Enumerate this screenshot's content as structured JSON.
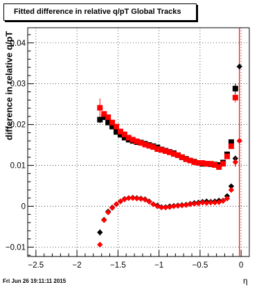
{
  "chart_data": {
    "type": "scatter",
    "title": "Fitted difference in relative q/pT  Global Tracks",
    "xlabel": "η",
    "ylabel": "difference in relative q/pT",
    "xlim": [
      -2.6,
      0.1
    ],
    "ylim": [
      -0.0123,
      0.0437
    ],
    "x_ticks": [
      -2.5,
      -2,
      -1.5,
      -1,
      -0.5,
      0
    ],
    "x_tick_labels": [
      "−2.5",
      "−2",
      "−1.5",
      "−1",
      "−0.5",
      "0"
    ],
    "y_ticks": [
      -0.01,
      0,
      0.01,
      0.02,
      0.03,
      0.04
    ],
    "y_tick_labels": [
      "−0.01",
      "0",
      "0.01",
      "0.02",
      "0.03",
      "0.04"
    ],
    "grid": true,
    "vertical_line": {
      "x": -0.02,
      "color": "#ff0000"
    },
    "series": [
      {
        "marker": "square",
        "color": "#000000",
        "x": [
          -1.72,
          -1.67,
          -1.62,
          -1.57,
          -1.52,
          -1.47,
          -1.42,
          -1.37,
          -1.32,
          -1.27,
          -1.22,
          -1.17,
          -1.12,
          -1.07,
          -1.02,
          -0.97,
          -0.92,
          -0.87,
          -0.82,
          -0.77,
          -0.72,
          -0.67,
          -0.62,
          -0.57,
          -0.52,
          -0.47,
          -0.42,
          -0.37,
          -0.32,
          -0.27,
          -0.22,
          -0.17,
          -0.12,
          -0.07
        ],
        "y": [
          0.0212,
          0.0218,
          0.0205,
          0.0195,
          0.0182,
          0.0175,
          0.0168,
          0.0163,
          0.016,
          0.0157,
          0.0156,
          0.0153,
          0.015,
          0.0147,
          0.0144,
          0.0139,
          0.0136,
          0.0133,
          0.013,
          0.0125,
          0.012,
          0.0116,
          0.0112,
          0.0109,
          0.0106,
          0.0104,
          0.0104,
          0.0103,
          0.0102,
          0.0101,
          0.0107,
          0.0127,
          0.0157,
          0.0288
        ],
        "err": [
          0.0008,
          0.0005,
          0.0005,
          0,
          0,
          0,
          0,
          0,
          0,
          0,
          0,
          0,
          0,
          0,
          0,
          0,
          0,
          0,
          0,
          0,
          0,
          0,
          0,
          0,
          0,
          0,
          0,
          0,
          0,
          0,
          0,
          0,
          0,
          0.0012
        ]
      },
      {
        "marker": "square",
        "color": "#ff0000",
        "x": [
          -1.72,
          -1.67,
          -1.62,
          -1.57,
          -1.52,
          -1.47,
          -1.42,
          -1.37,
          -1.32,
          -1.27,
          -1.22,
          -1.17,
          -1.12,
          -1.07,
          -1.02,
          -0.97,
          -0.92,
          -0.87,
          -0.82,
          -0.77,
          -0.72,
          -0.67,
          -0.62,
          -0.57,
          -0.52,
          -0.47,
          -0.42,
          -0.37,
          -0.32,
          -0.27,
          -0.22,
          -0.17,
          -0.12,
          -0.07
        ],
        "y": [
          0.0241,
          0.0226,
          0.0218,
          0.0205,
          0.0195,
          0.0183,
          0.0176,
          0.0168,
          0.0163,
          0.0159,
          0.0155,
          0.0151,
          0.0148,
          0.0145,
          0.014,
          0.0138,
          0.0135,
          0.0132,
          0.0128,
          0.0125,
          0.012,
          0.0115,
          0.0112,
          0.0108,
          0.0106,
          0.0106,
          0.0104,
          0.0104,
          0.0101,
          0.0096,
          0.0104,
          0.0122,
          0.0147,
          0.0266
        ],
        "err": [
          0.0023,
          0.0006,
          0.0005,
          0,
          0,
          0,
          0,
          0,
          0,
          0,
          0,
          0,
          0,
          0,
          0,
          0,
          0,
          0,
          0,
          0,
          0,
          0,
          0,
          0,
          0,
          0,
          0,
          0,
          0,
          0,
          0,
          0,
          0,
          0.0012
        ]
      },
      {
        "marker": "diamond",
        "color": "#000000",
        "x": [
          -1.72,
          -1.67,
          -1.62,
          -1.57,
          -1.52,
          -1.47,
          -1.42,
          -1.37,
          -1.32,
          -1.27,
          -1.22,
          -1.17,
          -1.12,
          -1.07,
          -1.02,
          -0.97,
          -0.92,
          -0.87,
          -0.82,
          -0.77,
          -0.72,
          -0.67,
          -0.62,
          -0.57,
          -0.52,
          -0.47,
          -0.42,
          -0.37,
          -0.32,
          -0.27,
          -0.22,
          -0.17,
          -0.12,
          -0.07,
          -0.02
        ],
        "y": [
          -0.0064,
          -0.0033,
          -0.0013,
          -0.0003,
          0.0005,
          0.0012,
          0.0018,
          0.002,
          0.0021,
          0.002,
          0.0019,
          0.0017,
          0.0012,
          0.0005,
          0.0002,
          -0.0002,
          -0.0002,
          0,
          0.0001,
          0.0002,
          0.0003,
          0.0004,
          0.0006,
          0.0008,
          0.0009,
          0.0011,
          0.0012,
          0.0011,
          0.0012,
          0.0014,
          0.0014,
          0.0025,
          0.0049,
          0.0117,
          0.0342
        ],
        "err": [
          0.0008,
          0,
          0,
          0,
          0,
          0,
          0,
          0,
          0,
          0,
          0,
          0,
          0,
          0,
          0,
          0,
          0,
          0,
          0,
          0,
          0,
          0,
          0,
          0,
          0,
          0,
          0,
          0,
          0,
          0,
          0,
          0,
          0,
          0.0007,
          0
        ]
      },
      {
        "marker": "diamond",
        "color": "#ff0000",
        "x": [
          -1.72,
          -1.67,
          -1.62,
          -1.57,
          -1.52,
          -1.47,
          -1.42,
          -1.37,
          -1.32,
          -1.27,
          -1.22,
          -1.17,
          -1.12,
          -1.07,
          -1.02,
          -0.97,
          -0.92,
          -0.87,
          -0.82,
          -0.77,
          -0.72,
          -0.67,
          -0.62,
          -0.57,
          -0.52,
          -0.47,
          -0.42,
          -0.37,
          -0.32,
          -0.27,
          -0.22,
          -0.17,
          -0.12,
          -0.07,
          -0.02
        ],
        "y": [
          -0.0094,
          -0.0034,
          -0.0015,
          -0.0004,
          0.0005,
          0.0012,
          0.0017,
          0.002,
          0.002,
          0.0019,
          0.0018,
          0.0016,
          0.0011,
          0.0005,
          0.0,
          -0.0003,
          -0.0003,
          -0.0002,
          0.0,
          0.0001,
          0.0002,
          0.0003,
          0.0005,
          0.0006,
          0.0007,
          0.0009,
          0.0008,
          0.0009,
          0.0009,
          0.001,
          0.0013,
          0.0019,
          0.004,
          0.0108,
          0.016
        ],
        "err": [
          0,
          0,
          0,
          0,
          0,
          0,
          0,
          0,
          0,
          0,
          0,
          0,
          0,
          0,
          0,
          0,
          0,
          0,
          0,
          0,
          0,
          0,
          0,
          0,
          0,
          0,
          0,
          0,
          0,
          0,
          0,
          0,
          0,
          0.0012,
          0
        ]
      }
    ]
  },
  "footer": {
    "timestamp": "Fri Jun 26 19:11:11 2015"
  }
}
